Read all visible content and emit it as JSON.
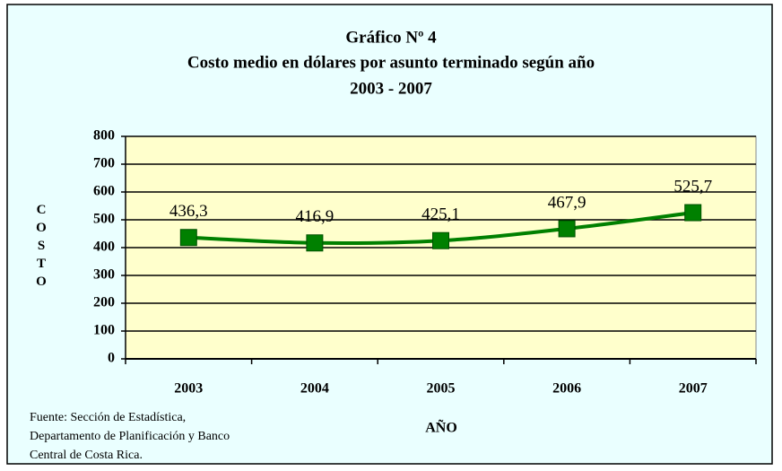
{
  "chart_data": {
    "type": "line",
    "title": [
      "Gráfico Nº 4",
      "Costo medio en dólares por asunto terminado según año",
      "2003 - 2007"
    ],
    "categories": [
      "2003",
      "2004",
      "2005",
      "2006",
      "2007"
    ],
    "series": [
      {
        "name": "Costo",
        "color": "#008000",
        "values": [
          436.3,
          416.9,
          425.1,
          467.9,
          525.7
        ],
        "value_labels": [
          "436,3",
          "416,9",
          "425,1",
          "467,9",
          "525,7"
        ]
      }
    ],
    "ylim": [
      0,
      800
    ],
    "yticks": [
      0,
      100,
      200,
      300,
      400,
      500,
      600,
      700,
      800
    ],
    "grid": true,
    "y_label": "COSTO",
    "x_label": "AÑO",
    "source": [
      "Fuente: Sección de Estadística,",
      "Departamento de Planificación y Banco",
      "Central de Costa Rica."
    ]
  }
}
